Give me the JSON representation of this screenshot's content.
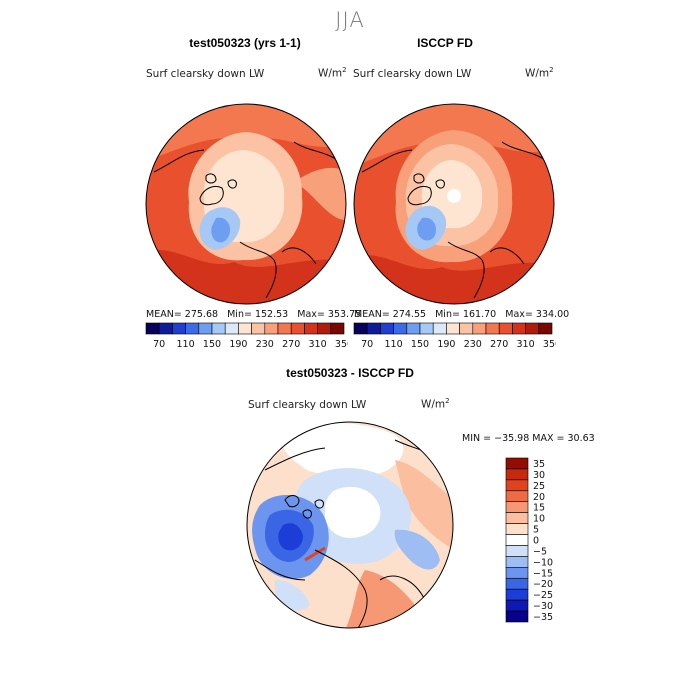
{
  "season": "JJA",
  "panels": {
    "model": {
      "title": "test050323 (yrs 1-1)",
      "variable": "Surf clearsky down LW",
      "units": "W/m",
      "units_sup": "2",
      "stats": {
        "mean_label": "MEAN=",
        "mean": "275.68",
        "min_label": "Min=",
        "min": "152.53",
        "max_label": "Max=",
        "max": "353.75"
      }
    },
    "obs": {
      "title": "ISCCP FD",
      "variable": "Surf clearsky down LW",
      "units": "W/m",
      "units_sup": "2",
      "stats": {
        "mean_label": "MEAN=",
        "mean": "274.55",
        "min_label": "Min=",
        "min": "161.70",
        "max_label": "Max=",
        "max": "334.00"
      }
    },
    "diff": {
      "title": "test050323 - ISCCP FD",
      "variable": "Surf clearsky down LW",
      "units": "W/m",
      "units_sup": "2",
      "minmax": "MIN = −35.98 MAX =  30.63"
    }
  },
  "colors": {
    "abs_scale": [
      "#08005a",
      "#0e1b9a",
      "#1f3fd0",
      "#3a6ce8",
      "#6e9ef0",
      "#a6c8f5",
      "#dbe9f8",
      "#fde5d2",
      "#fbc3a3",
      "#f7a07a",
      "#f3774f",
      "#e8502e",
      "#d2331a",
      "#b01c0c",
      "#7a0800"
    ],
    "diff_scale": [
      "#06008a",
      "#0e18b5",
      "#1d3ed6",
      "#3a66e6",
      "#6b95ee",
      "#9dbdf3",
      "#cfe0f8",
      "#ffffff",
      "#fde0cc",
      "#fbbfa0",
      "#f69873",
      "#ef6b46",
      "#e2431f",
      "#c52a0f",
      "#950d02"
    ]
  },
  "chart_data": [
    {
      "type": "heatmap",
      "title": "test050323 (yrs 1-1)",
      "subtitle": "Surf clearsky down LW",
      "units": "W/m2",
      "projection": "north polar stereographic",
      "colorbar_ticks": [
        "70",
        "110",
        "150",
        "190",
        "230",
        "270",
        "310",
        "350"
      ],
      "stats": {
        "mean": 275.68,
        "min": 152.53,
        "max": 353.75
      }
    },
    {
      "type": "heatmap",
      "title": "ISCCP FD",
      "subtitle": "Surf clearsky down LW",
      "units": "W/m2",
      "projection": "north polar stereographic",
      "colorbar_ticks": [
        "70",
        "110",
        "150",
        "190",
        "230",
        "270",
        "310",
        "350"
      ],
      "stats": {
        "mean": 274.55,
        "min": 161.7,
        "max": 334.0
      }
    },
    {
      "type": "heatmap",
      "title": "test050323 - ISCCP FD",
      "subtitle": "Surf clearsky down LW",
      "units": "W/m2",
      "projection": "north polar stereographic",
      "colorbar_ticks": [
        "35",
        "30",
        "25",
        "20",
        "15",
        "10",
        "5",
        "0",
        "−5",
        "−10",
        "−15",
        "−20",
        "−25",
        "−30",
        "−35"
      ],
      "stats": {
        "min": -35.98,
        "max": 30.63
      }
    }
  ]
}
